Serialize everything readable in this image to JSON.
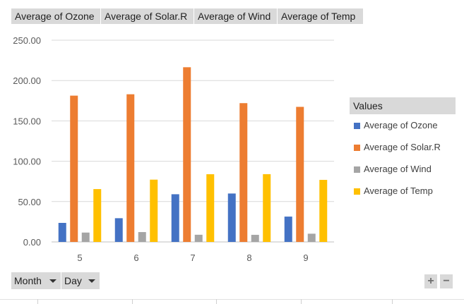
{
  "field_buttons": [
    {
      "label": "Average of Ozone"
    },
    {
      "label": "Average of Solar.R"
    },
    {
      "label": "Average of Wind"
    },
    {
      "label": "Average of Temp"
    }
  ],
  "legend": {
    "title": "Values",
    "items": [
      {
        "label": "Average of Ozone",
        "color": "#4472c4"
      },
      {
        "label": "Average of Solar.R",
        "color": "#ed7d31"
      },
      {
        "label": "Average of Wind",
        "color": "#a5a5a5"
      },
      {
        "label": "Average of Temp",
        "color": "#ffc000"
      }
    ]
  },
  "axis_fields": [
    {
      "label": "Month"
    },
    {
      "label": "Day"
    }
  ],
  "zoom": {
    "plus": "+",
    "minus": "−"
  },
  "chart_data": {
    "type": "bar",
    "categories": [
      "5",
      "6",
      "7",
      "8",
      "9"
    ],
    "series": [
      {
        "name": "Average of Ozone",
        "color": "#4472c4",
        "values": [
          23.6,
          29.4,
          59.1,
          60.0,
          31.4
        ]
      },
      {
        "name": "Average of Solar.R",
        "color": "#ed7d31",
        "values": [
          181.3,
          183.0,
          216.5,
          172.0,
          167.4
        ]
      },
      {
        "name": "Average of Wind",
        "color": "#a5a5a5",
        "values": [
          11.6,
          12.2,
          8.9,
          8.8,
          10.2
        ]
      },
      {
        "name": "Average of Temp",
        "color": "#ffc000",
        "values": [
          65.5,
          77.2,
          83.9,
          84.0,
          76.9
        ]
      }
    ],
    "ylim": [
      0,
      250
    ],
    "yticks": [
      "0.00",
      "50.00",
      "100.00",
      "150.00",
      "200.00",
      "250.00"
    ],
    "grid": true,
    "legend_position": "right"
  }
}
